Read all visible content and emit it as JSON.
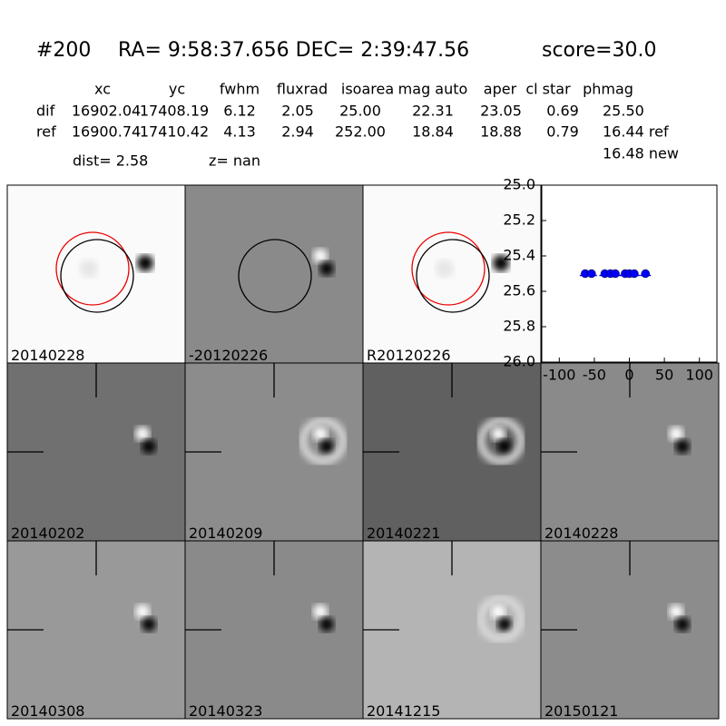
{
  "header": {
    "id": "#200",
    "coords": "RA= 9:58:37.656 DEC= 2:39:47.56",
    "score": "score=30.0"
  },
  "table": {
    "columns": [
      "xc",
      "yc",
      "fwhm",
      "fluxrad",
      "isoarea",
      "mag auto",
      "aper",
      "cl star",
      "phmag"
    ],
    "rows": [
      [
        "dif",
        "16902.04",
        "17408.19",
        "6.12",
        "2.05",
        "25.00",
        "22.31",
        "23.05",
        "0.69",
        "25.50"
      ],
      [
        "ref",
        "16900.74",
        "17410.42",
        "4.13",
        "2.94",
        "252.00",
        "18.84",
        "18.88",
        "0.79",
        "16.44 ref"
      ]
    ],
    "extra": "16.48 new"
  },
  "dist": "dist=  2.58",
  "z": "z=   nan",
  "stamps": [
    "20140228",
    "-20120226",
    "R20120226",
    "20140202",
    "20140209",
    "20140221",
    "20140228",
    "20140308",
    "20140323",
    "20141215",
    "20150121"
  ],
  "chart_data": {
    "type": "scatter",
    "x": [
      -63,
      -54,
      -35,
      -27,
      -20,
      -6,
      0,
      7,
      23
    ],
    "values": [
      25.5,
      25.5,
      25.5,
      25.5,
      25.5,
      25.5,
      25.5,
      25.5,
      25.5
    ],
    "color": "#0000ff",
    "xlim": [
      -125,
      125
    ],
    "xticks": [
      -100,
      -50,
      0,
      50,
      100
    ],
    "ylim": [
      26,
      25
    ],
    "yticks": [
      {
        "value": 25,
        "label": "25.0"
      },
      {
        "value": 25.2,
        "label": "25.2"
      },
      {
        "value": 25.4,
        "label": "25.4"
      },
      {
        "value": 25.6,
        "label": "25.6"
      },
      {
        "value": 25.8,
        "label": "25.8"
      },
      {
        "value": 26,
        "label": "26.0"
      }
    ]
  }
}
